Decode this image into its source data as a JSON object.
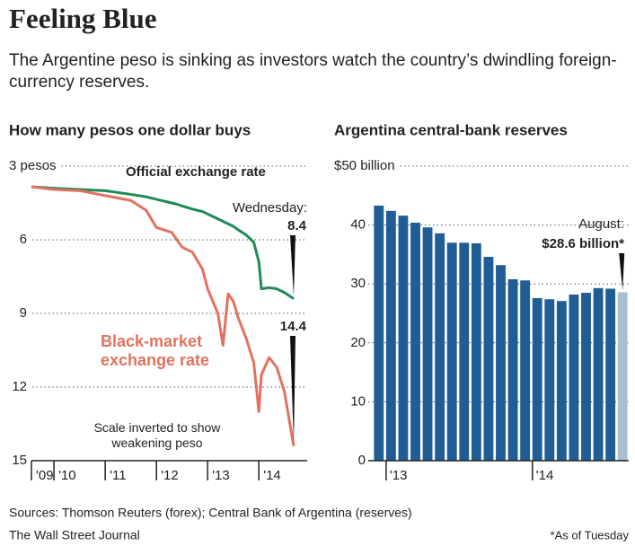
{
  "header": {
    "title": "Feeling Blue",
    "subtitle": "The Argentine peso is sinking as investors watch the country’s dwindling foreign-currency reserves."
  },
  "chart_data": [
    {
      "type": "line",
      "title": "How many pesos one dollar buys",
      "inverted": true,
      "annotations": [
        "Wednesday:",
        "Scale inverted to show weakening peso"
      ],
      "x": [
        2009.56,
        2010,
        2010.5,
        2011,
        2011.5,
        2011.8,
        2012,
        2012.3,
        2012.4,
        2012.5,
        2012.7,
        2012.9,
        2013,
        2013.1,
        2013.2,
        2013.3,
        2013.4,
        2013.5,
        2013.6,
        2013.75,
        2013.9,
        2014,
        2014.05,
        2014.2,
        2014.35,
        2014.5,
        2014.68
      ],
      "series": [
        {
          "name": "Official exchange rate",
          "color": "#1f8a55",
          "values": [
            3.84,
            3.9,
            3.95,
            4.0,
            4.15,
            4.25,
            4.35,
            4.5,
            4.55,
            4.62,
            4.75,
            4.85,
            4.95,
            5.05,
            5.15,
            5.25,
            5.35,
            5.45,
            5.6,
            5.8,
            6.1,
            6.9,
            8.0,
            7.95,
            8.0,
            8.15,
            8.4
          ]
        },
        {
          "name": "Black-market exchange rate",
          "color": "#e2725f",
          "values": [
            3.84,
            3.95,
            4.0,
            4.2,
            4.4,
            4.8,
            5.5,
            5.7,
            6.0,
            6.3,
            6.5,
            7.2,
            8.0,
            8.5,
            9.0,
            10.3,
            8.2,
            8.5,
            9.2,
            10.0,
            11.0,
            13.0,
            11.5,
            10.8,
            11.2,
            12.2,
            14.4
          ]
        }
      ],
      "xlim": [
        2009.56,
        2014.68
      ],
      "xticks": [
        {
          "value": 2009.56,
          "label": "'09"
        },
        {
          "value": 2010,
          "label": "'10"
        },
        {
          "value": 2011,
          "label": "'11"
        },
        {
          "value": 2012,
          "label": "'12"
        },
        {
          "value": 2013,
          "label": "'13"
        },
        {
          "value": 2014,
          "label": "'14"
        }
      ],
      "ylim": [
        3,
        15
      ],
      "yticks": [
        {
          "value": 3,
          "label": "3 pesos"
        },
        6,
        9,
        12,
        15
      ],
      "grid": true
    },
    {
      "type": "bar",
      "title": "Argentina central-bank reserves",
      "annotations": [
        "August:"
      ],
      "categories": [
        null,
        "'13",
        null,
        null,
        null,
        null,
        null,
        null,
        null,
        null,
        null,
        null,
        null,
        "'14",
        null,
        null,
        null,
        null,
        null,
        null,
        null
      ],
      "values": [
        43.3,
        42.4,
        41.6,
        40.4,
        39.6,
        38.6,
        37.0,
        37.0,
        36.9,
        34.6,
        33.2,
        30.8,
        30.6,
        27.6,
        27.4,
        27.1,
        28.2,
        28.5,
        29.3,
        29.2,
        28.6
      ],
      "value_labels": [
        null,
        null,
        null,
        null,
        null,
        null,
        null,
        null,
        null,
        null,
        null,
        null,
        null,
        null,
        null,
        null,
        null,
        null,
        null,
        null,
        "$28.6 billion*"
      ],
      "colors": [
        "#1f5d94",
        "#1f5d94",
        "#1f5d94",
        "#1f5d94",
        "#1f5d94",
        "#1f5d94",
        "#1f5d94",
        "#1f5d94",
        "#1f5d94",
        "#1f5d94",
        "#1f5d94",
        "#1f5d94",
        "#1f5d94",
        "#1f5d94",
        "#1f5d94",
        "#1f5d94",
        "#1f5d94",
        "#1f5d94",
        "#1f5d94",
        "#1f5d94",
        "#a9bfd3"
      ],
      "ylim": [
        0,
        50
      ],
      "yticks": [
        0,
        10,
        20,
        30,
        40,
        {
          "value": 50,
          "label": "$50 billion"
        }
      ],
      "grid": true
    }
  ],
  "footer": {
    "sources": "Sources: Thomson Reuters (forex); Central Bank of Argentina (reserves)",
    "publisher": "The Wall Street Journal",
    "note": "*As of Tuesday"
  }
}
